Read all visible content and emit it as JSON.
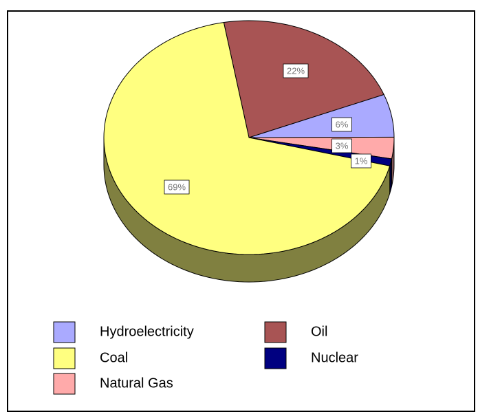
{
  "chart_data": {
    "type": "pie",
    "categories": [
      "Oil",
      "Hydroelectricity",
      "Natural Gas",
      "Nuclear",
      "Coal"
    ],
    "values": [
      22,
      6,
      3,
      1,
      69
    ],
    "value_labels": [
      "22%",
      "6%",
      "3%",
      "1%",
      "69%"
    ],
    "colors": [
      "#a85454",
      "#aaaaff",
      "#ffaaaa",
      "#000080",
      "#ffff80"
    ],
    "legend": true
  }
}
